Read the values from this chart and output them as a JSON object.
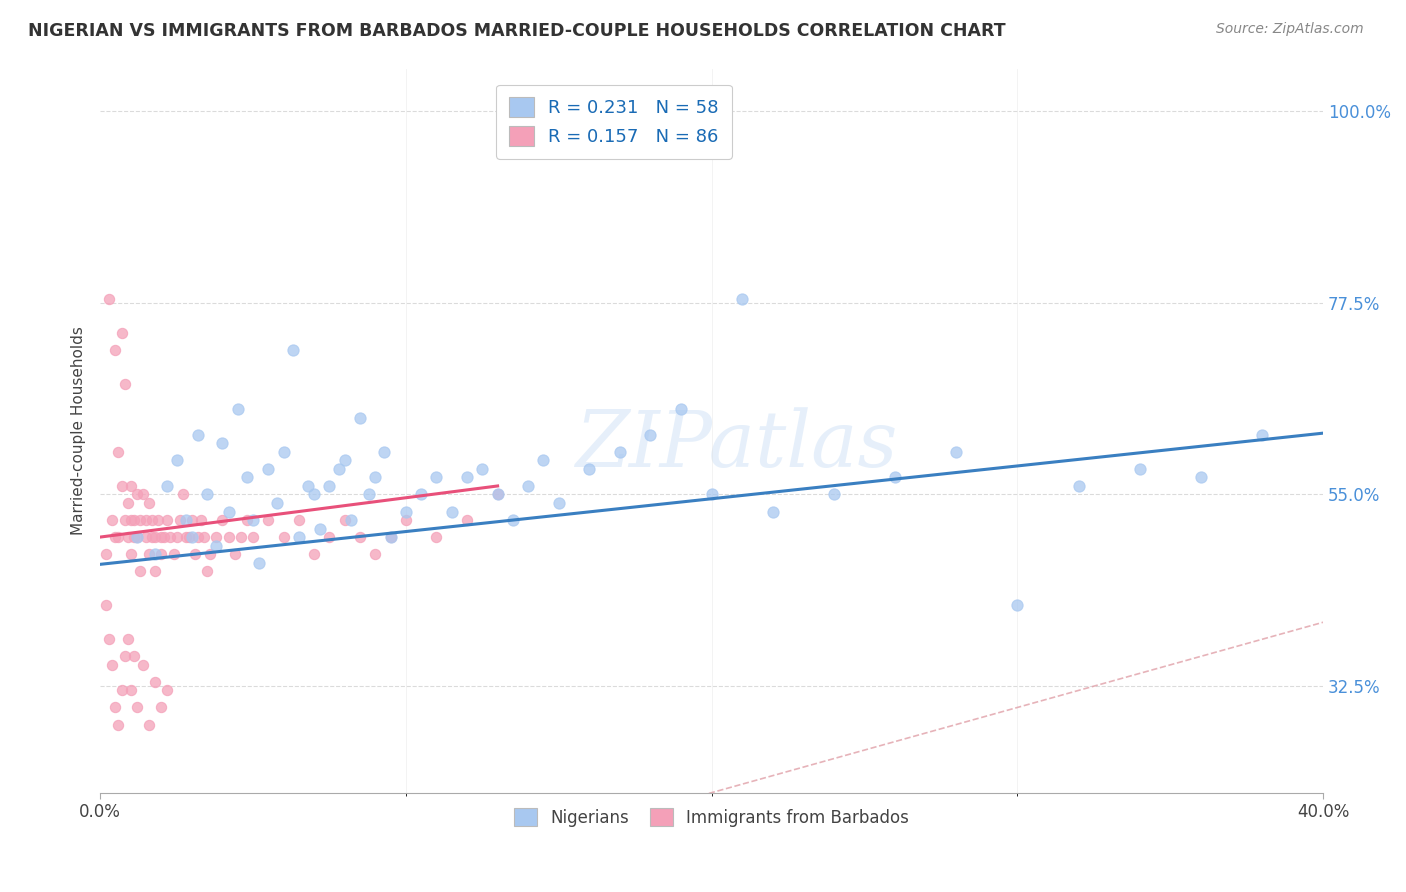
{
  "title": "NIGERIAN VS IMMIGRANTS FROM BARBADOS MARRIED-COUPLE HOUSEHOLDS CORRELATION CHART",
  "source": "Source: ZipAtlas.com",
  "ylabel": "Married-couple Households",
  "y_ticks_labels": [
    "100.0%",
    "77.5%",
    "55.0%",
    "32.5%"
  ],
  "y_tick_vals": [
    1.0,
    0.775,
    0.55,
    0.325
  ],
  "x_lim": [
    0.0,
    0.4
  ],
  "y_lim": [
    0.2,
    1.05
  ],
  "legend_r1": "R = 0.231",
  "legend_n1": "N = 58",
  "legend_r2": "R = 0.157",
  "legend_n2": "N = 86",
  "blue_color": "#a8c8f0",
  "pink_color": "#f4a0b8",
  "blue_line_color": "#3a7fc1",
  "pink_line_color": "#e8507a",
  "ref_line_color": "#e0a0a8",
  "watermark": "ZIPatlas",
  "nigerians_x": [
    0.012,
    0.018,
    0.022,
    0.025,
    0.028,
    0.03,
    0.032,
    0.035,
    0.038,
    0.04,
    0.042,
    0.045,
    0.048,
    0.05,
    0.052,
    0.055,
    0.058,
    0.06,
    0.063,
    0.065,
    0.068,
    0.07,
    0.072,
    0.075,
    0.078,
    0.08,
    0.082,
    0.085,
    0.088,
    0.09,
    0.093,
    0.095,
    0.1,
    0.105,
    0.11,
    0.115,
    0.12,
    0.125,
    0.13,
    0.135,
    0.14,
    0.145,
    0.15,
    0.16,
    0.17,
    0.18,
    0.19,
    0.2,
    0.21,
    0.22,
    0.24,
    0.26,
    0.28,
    0.3,
    0.32,
    0.34,
    0.36,
    0.38
  ],
  "nigerians_y": [
    0.5,
    0.48,
    0.56,
    0.59,
    0.52,
    0.5,
    0.62,
    0.55,
    0.49,
    0.61,
    0.53,
    0.65,
    0.57,
    0.52,
    0.47,
    0.58,
    0.54,
    0.6,
    0.72,
    0.5,
    0.56,
    0.55,
    0.51,
    0.56,
    0.58,
    0.59,
    0.52,
    0.64,
    0.55,
    0.57,
    0.6,
    0.5,
    0.53,
    0.55,
    0.57,
    0.53,
    0.57,
    0.58,
    0.55,
    0.52,
    0.56,
    0.59,
    0.54,
    0.58,
    0.6,
    0.62,
    0.65,
    0.55,
    0.78,
    0.53,
    0.55,
    0.57,
    0.6,
    0.42,
    0.56,
    0.58,
    0.57,
    0.62
  ],
  "barbados_x": [
    0.002,
    0.003,
    0.004,
    0.005,
    0.005,
    0.006,
    0.006,
    0.007,
    0.007,
    0.008,
    0.008,
    0.009,
    0.009,
    0.01,
    0.01,
    0.01,
    0.011,
    0.011,
    0.012,
    0.012,
    0.013,
    0.013,
    0.014,
    0.015,
    0.015,
    0.016,
    0.016,
    0.017,
    0.017,
    0.018,
    0.018,
    0.019,
    0.02,
    0.02,
    0.021,
    0.022,
    0.023,
    0.024,
    0.025,
    0.026,
    0.027,
    0.028,
    0.029,
    0.03,
    0.031,
    0.032,
    0.033,
    0.034,
    0.035,
    0.036,
    0.038,
    0.04,
    0.042,
    0.044,
    0.046,
    0.048,
    0.05,
    0.055,
    0.06,
    0.065,
    0.07,
    0.075,
    0.08,
    0.085,
    0.09,
    0.095,
    0.1,
    0.11,
    0.12,
    0.13,
    0.002,
    0.003,
    0.004,
    0.005,
    0.006,
    0.007,
    0.008,
    0.009,
    0.01,
    0.011,
    0.012,
    0.014,
    0.016,
    0.018,
    0.02,
    0.022
  ],
  "barbados_y": [
    0.48,
    0.78,
    0.52,
    0.72,
    0.5,
    0.6,
    0.5,
    0.56,
    0.74,
    0.52,
    0.68,
    0.5,
    0.54,
    0.52,
    0.56,
    0.48,
    0.5,
    0.52,
    0.5,
    0.55,
    0.52,
    0.46,
    0.55,
    0.52,
    0.5,
    0.54,
    0.48,
    0.5,
    0.52,
    0.5,
    0.46,
    0.52,
    0.5,
    0.48,
    0.5,
    0.52,
    0.5,
    0.48,
    0.5,
    0.52,
    0.55,
    0.5,
    0.5,
    0.52,
    0.48,
    0.5,
    0.52,
    0.5,
    0.46,
    0.48,
    0.5,
    0.52,
    0.5,
    0.48,
    0.5,
    0.52,
    0.5,
    0.52,
    0.5,
    0.52,
    0.48,
    0.5,
    0.52,
    0.5,
    0.48,
    0.5,
    0.52,
    0.5,
    0.52,
    0.55,
    0.42,
    0.38,
    0.35,
    0.3,
    0.28,
    0.32,
    0.36,
    0.38,
    0.32,
    0.36,
    0.3,
    0.35,
    0.28,
    0.33,
    0.3,
    0.32
  ],
  "blue_trend_x0": 0.0,
  "blue_trend_y0": 0.468,
  "blue_trend_x1": 0.4,
  "blue_trend_y1": 0.622,
  "pink_trend_x0": 0.0,
  "pink_trend_y0": 0.5,
  "pink_trend_x1": 0.13,
  "pink_trend_y1": 0.56
}
